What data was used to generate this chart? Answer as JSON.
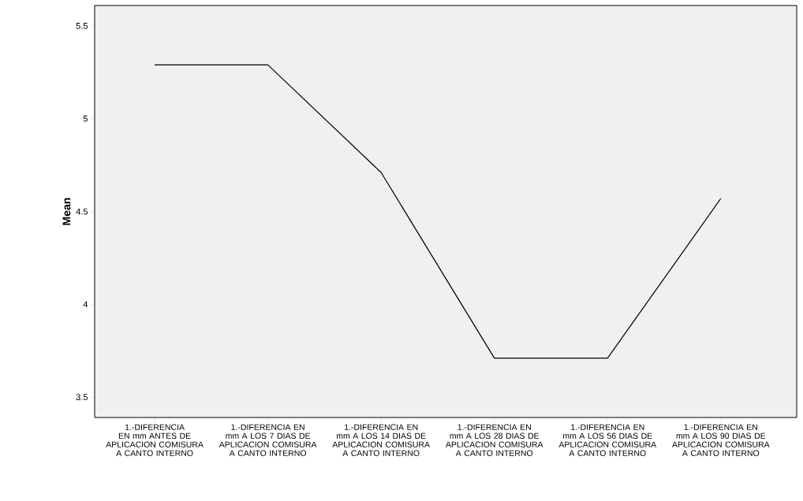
{
  "chart_data": {
    "type": "line",
    "ylabel": "Mean",
    "categories": [
      "1.-DIFERENCIA EN mm ANTES DE APLICACION COMISURA A CANTO INTERNO",
      "1.-DIFERENCIA EN mm A LOS 7 DIAS DE APLICACION COMISURA A CANTO INTERNO",
      "1.-DIFERENCIA EN mm A LOS 14 DIAS DE APLICACION COMISURA A CANTO INTERNO",
      "1.-DIFERENCIA EN mm A LOS 28 DIAS DE APLICACION COMISURA A CANTO INTERNO",
      "1.-DIFERENCIA EN mm A LOS 56 DIAS DE APLICACION COMISURA A CANTO INTERNO",
      "1.-DIFERENCIA EN mm A LOS 90 DIAS DE APLICACION COMISURA A CANTO INTERNO"
    ],
    "values": [
      5.29,
      5.29,
      4.71,
      3.71,
      3.71,
      4.57
    ],
    "color": "#000000",
    "ylim": [
      3.39,
      5.61
    ],
    "yticks": [
      3.5,
      4,
      4.5,
      5,
      5.5
    ],
    "grid": false,
    "marker": "none",
    "line_style": "solid"
  }
}
